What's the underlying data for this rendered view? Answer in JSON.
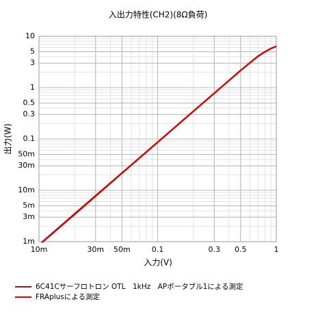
{
  "chart_data": {
    "type": "line",
    "title": "入出力特性(CH2)(8Ω負荷)",
    "x_label": "入力(V)",
    "y_label": "出力(W)",
    "x_scale": "log",
    "y_scale": "log",
    "grid": true,
    "minor_grid": true,
    "legend": "bottom-left",
    "xlim": [
      0.01,
      1
    ],
    "ylim": [
      0.001,
      10
    ],
    "xticks": [
      {
        "value": 0.01,
        "label": "10m"
      },
      {
        "value": 0.03,
        "label": "30m"
      },
      {
        "value": 0.05,
        "label": "50m"
      },
      0.1,
      0.3,
      0.5,
      1
    ],
    "yticks": [
      {
        "value": 0.001,
        "label": "1m"
      },
      {
        "value": 0.003,
        "label": "3m"
      },
      {
        "value": 0.005,
        "label": "5m"
      },
      {
        "value": 0.01,
        "label": "10m"
      },
      {
        "value": 0.03,
        "label": "30m"
      },
      {
        "value": 0.05,
        "label": "50m"
      },
      0.1,
      0.3,
      0.5,
      1,
      3,
      5,
      10
    ],
    "series": [
      {
        "name": "6C41Cサーフロトロン OTL　1kHz　APポータブル1による測定",
        "color": "#8b1a1a",
        "x": [
          0.0105,
          0.02,
          0.05,
          0.1,
          0.2,
          0.5,
          0.7,
          0.8,
          0.9,
          1
        ],
        "values": [
          0.00096,
          0.0035,
          0.0218,
          0.087,
          0.348,
          2.17,
          4.1,
          5.0,
          5.8,
          6.4
        ]
      },
      {
        "name": "FRAplusによる測定",
        "color": "#e00000",
        "x": [
          0.0108,
          0.02,
          0.05,
          0.1,
          0.2,
          0.5,
          0.7,
          0.8,
          0.9,
          1
        ],
        "values": [
          0.001,
          0.0034,
          0.0215,
          0.086,
          0.345,
          2.15,
          4.05,
          4.95,
          5.75,
          6.35
        ]
      }
    ]
  }
}
